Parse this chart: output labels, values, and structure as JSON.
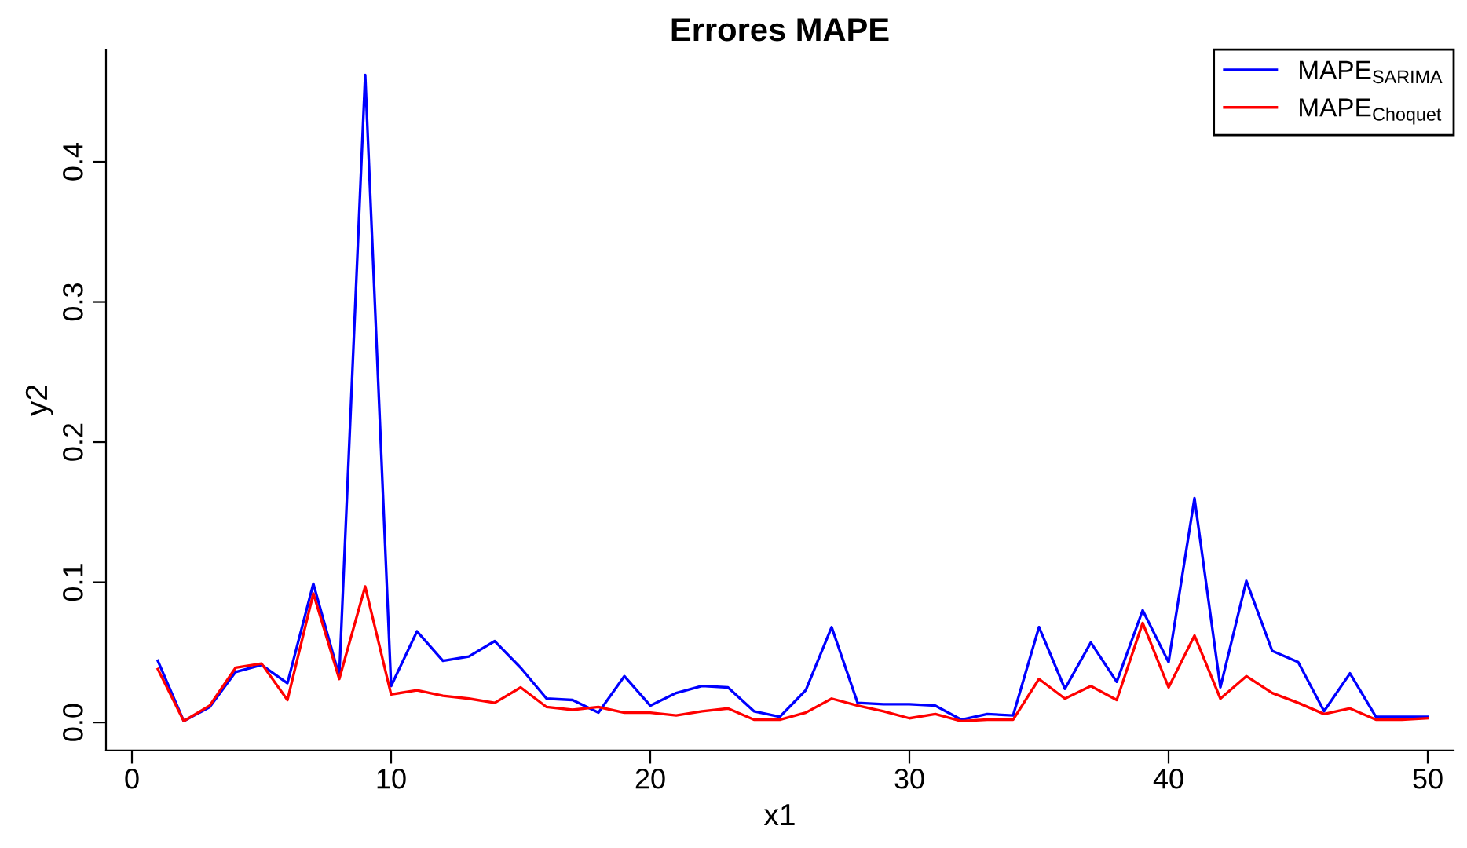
{
  "chart_data": {
    "type": "line",
    "title": "Errores MAPE",
    "xlabel": "x1",
    "ylabel": "y2",
    "x": [
      1,
      2,
      3,
      4,
      5,
      6,
      7,
      8,
      9,
      10,
      11,
      12,
      13,
      14,
      15,
      16,
      17,
      18,
      19,
      20,
      21,
      22,
      23,
      24,
      25,
      26,
      27,
      28,
      29,
      30,
      31,
      32,
      33,
      34,
      35,
      36,
      37,
      38,
      39,
      40,
      41,
      42,
      43,
      44,
      45,
      46,
      47,
      48,
      49,
      50
    ],
    "series": [
      {
        "name": "MAPE$_{SARIMA}$",
        "color": "#0000ff",
        "values": [
          0.044,
          0.001,
          0.011,
          0.036,
          0.041,
          0.028,
          0.099,
          0.033,
          0.462,
          0.026,
          0.065,
          0.044,
          0.047,
          0.058,
          0.039,
          0.017,
          0.016,
          0.007,
          0.033,
          0.012,
          0.021,
          0.026,
          0.025,
          0.008,
          0.004,
          0.023,
          0.068,
          0.014,
          0.013,
          0.013,
          0.012,
          0.002,
          0.006,
          0.005,
          0.068,
          0.024,
          0.057,
          0.029,
          0.08,
          0.043,
          0.16,
          0.025,
          0.101,
          0.051,
          0.043,
          0.008,
          0.035,
          0.004,
          0.004,
          0.004
        ]
      },
      {
        "name": "MAPE$_{Choquet}$",
        "color": "#ff0000",
        "values": [
          0.038,
          0.001,
          0.012,
          0.039,
          0.042,
          0.016,
          0.092,
          0.031,
          0.097,
          0.02,
          0.023,
          0.019,
          0.017,
          0.014,
          0.025,
          0.011,
          0.009,
          0.011,
          0.007,
          0.007,
          0.005,
          0.008,
          0.01,
          0.002,
          0.002,
          0.007,
          0.017,
          0.012,
          0.008,
          0.003,
          0.006,
          0.001,
          0.002,
          0.002,
          0.031,
          0.017,
          0.026,
          0.016,
          0.071,
          0.025,
          0.062,
          0.017,
          0.033,
          0.021,
          0.014,
          0.006,
          0.01,
          0.002,
          0.002,
          0.003
        ]
      }
    ],
    "xlim": [
      -1,
      51
    ],
    "ylim": [
      -0.02,
      0.48
    ],
    "xticks": [
      0,
      10,
      20,
      30,
      40,
      50
    ],
    "yticks": [
      {
        "value": 0,
        "label": "0.0"
      },
      {
        "value": 0.1,
        "label": "0.1"
      },
      {
        "value": 0.2,
        "label": "0.2"
      },
      {
        "value": 0.3,
        "label": "0.3"
      },
      {
        "value": 0.4,
        "label": "0.4"
      }
    ],
    "legend": "top right",
    "grid": false,
    "marker": "none",
    "line_style": "solid"
  }
}
